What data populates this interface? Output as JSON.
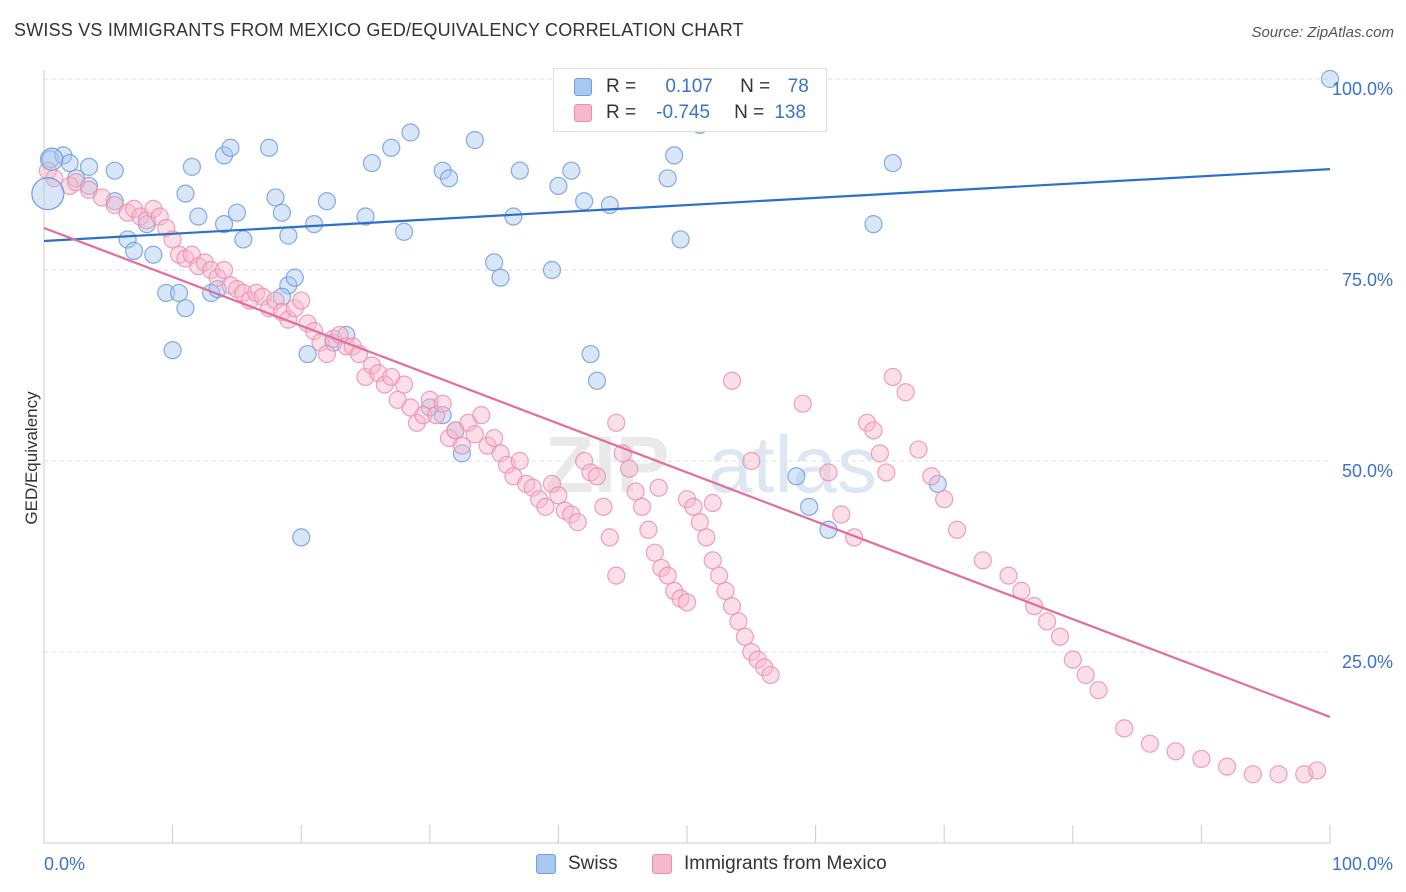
{
  "title": "SWISS VS IMMIGRANTS FROM MEXICO GED/EQUIVALENCY CORRELATION CHART",
  "source": "Source: ZipAtlas.com",
  "watermark": {
    "part1": "ZIP",
    "part2": "atlas"
  },
  "legend": {
    "series1": {
      "r_label": "R =",
      "r_value": "0.107",
      "n_label": "N =",
      "n_value": "78"
    },
    "series2": {
      "r_label": "R =",
      "r_value": "-0.745",
      "n_label": "N =",
      "n_value": "138"
    }
  },
  "colors": {
    "swiss_fill": "#a9c8f0",
    "swiss_stroke": "#6f9fdc",
    "swiss_line": "#2e6fc9",
    "mexico_fill": "#f6b8cc",
    "mexico_stroke": "#ec8fae",
    "mexico_line": "#e36d9b",
    "axis_label": "#3a73c9",
    "grid": "#dddddd"
  },
  "chart_data": {
    "type": "scatter",
    "title": "SWISS VS IMMIGRANTS FROM MEXICO GED/EQUIVALENCY CORRELATION CHART",
    "xlabel": "",
    "ylabel": "GED/Equivalency",
    "xlim": [
      0,
      100
    ],
    "ylim": [
      0,
      102
    ],
    "x_tick_labels": [
      "0.0%",
      "100.0%"
    ],
    "y_tick_labels": [
      "25.0%",
      "50.0%",
      "75.0%",
      "100.0%"
    ],
    "y_ticks": [
      25,
      50,
      75,
      100
    ],
    "grid": true,
    "legend_position": "top-center",
    "series": [
      {
        "name": "Swiss",
        "trend": [
          [
            0,
            78.8
          ],
          [
            100,
            88.2
          ]
        ],
        "points": [
          [
            0.5,
            89.5
          ],
          [
            1.5,
            90
          ],
          [
            2,
            89
          ],
          [
            3.5,
            88.5
          ],
          [
            5.5,
            88
          ],
          [
            2.5,
            87
          ],
          [
            3.5,
            86
          ],
          [
            5.5,
            84
          ],
          [
            8,
            81
          ],
          [
            6.5,
            79
          ],
          [
            7,
            77.5
          ],
          [
            8.5,
            77
          ],
          [
            11,
            85
          ],
          [
            11.5,
            88.5
          ],
          [
            12,
            82
          ],
          [
            13,
            72
          ],
          [
            11,
            70
          ],
          [
            9.5,
            72
          ],
          [
            10,
            64.5
          ],
          [
            10.5,
            72
          ],
          [
            13.5,
            72.5
          ],
          [
            14,
            81
          ],
          [
            15,
            82.5
          ],
          [
            15.5,
            79
          ],
          [
            14,
            90
          ],
          [
            14.5,
            91
          ],
          [
            17.5,
            91
          ],
          [
            18,
            84.5
          ],
          [
            18.5,
            82.5
          ],
          [
            19,
            79.5
          ],
          [
            19,
            73
          ],
          [
            18.5,
            71.5
          ],
          [
            19.5,
            74
          ],
          [
            21,
            81
          ],
          [
            22,
            84
          ],
          [
            20.5,
            64
          ],
          [
            22.5,
            65.5
          ],
          [
            23.5,
            66.5
          ],
          [
            25,
            82
          ],
          [
            25.5,
            89
          ],
          [
            27,
            91
          ],
          [
            28.5,
            93
          ],
          [
            28,
            80
          ],
          [
            30,
            57
          ],
          [
            31,
            56
          ],
          [
            32,
            54
          ],
          [
            32.5,
            51
          ],
          [
            31,
            88
          ],
          [
            31.5,
            87
          ],
          [
            33.5,
            92
          ],
          [
            35,
            76
          ],
          [
            35.5,
            74
          ],
          [
            36.5,
            82
          ],
          [
            37,
            88
          ],
          [
            39.5,
            75
          ],
          [
            40,
            86
          ],
          [
            41,
            88
          ],
          [
            42,
            84
          ],
          [
            42.5,
            64
          ],
          [
            43,
            60.5
          ],
          [
            44,
            83.5
          ],
          [
            45,
            100
          ],
          [
            46,
            100
          ],
          [
            48,
            100
          ],
          [
            48.5,
            87
          ],
          [
            49,
            90
          ],
          [
            49.5,
            79
          ],
          [
            51,
            94
          ],
          [
            55,
            100
          ],
          [
            57,
            100
          ],
          [
            58.5,
            48
          ],
          [
            59.5,
            44
          ],
          [
            61,
            41
          ],
          [
            64.5,
            81
          ],
          [
            66,
            89
          ],
          [
            69.5,
            47
          ],
          [
            20,
            40
          ],
          [
            100,
            100
          ]
        ]
      },
      {
        "name": "Immigrants from Mexico",
        "trend": [
          [
            0,
            80.5
          ],
          [
            100,
            16.5
          ]
        ],
        "points": [
          [
            0.3,
            88
          ],
          [
            0.8,
            87
          ],
          [
            2,
            86
          ],
          [
            2.5,
            86.5
          ],
          [
            3.5,
            85.5
          ],
          [
            4.5,
            84.5
          ],
          [
            5.5,
            83.5
          ],
          [
            6.5,
            82.5
          ],
          [
            7,
            83
          ],
          [
            7.5,
            82
          ],
          [
            8,
            81.5
          ],
          [
            8.5,
            83
          ],
          [
            9,
            82
          ],
          [
            9.5,
            80.5
          ],
          [
            10,
            79
          ],
          [
            10.5,
            77
          ],
          [
            11,
            76.5
          ],
          [
            11.5,
            77
          ],
          [
            12,
            75.5
          ],
          [
            12.5,
            76
          ],
          [
            13,
            75
          ],
          [
            13.5,
            74
          ],
          [
            14,
            75
          ],
          [
            14.5,
            73
          ],
          [
            15,
            72.5
          ],
          [
            15.5,
            72
          ],
          [
            16,
            71
          ],
          [
            16.5,
            72
          ],
          [
            17,
            71.5
          ],
          [
            17.5,
            70
          ],
          [
            18,
            71
          ],
          [
            18.5,
            69.5
          ],
          [
            19,
            68.5
          ],
          [
            19.5,
            70
          ],
          [
            20,
            71
          ],
          [
            20.5,
            68
          ],
          [
            21,
            67
          ],
          [
            21.5,
            65.5
          ],
          [
            22,
            64
          ],
          [
            22.5,
            66
          ],
          [
            23,
            66.5
          ],
          [
            23.5,
            65
          ],
          [
            24,
            65
          ],
          [
            24.5,
            64
          ],
          [
            25,
            61
          ],
          [
            25.5,
            62.5
          ],
          [
            26,
            61.5
          ],
          [
            26.5,
            60
          ],
          [
            27,
            61
          ],
          [
            27.5,
            58
          ],
          [
            28,
            60
          ],
          [
            28.5,
            57
          ],
          [
            29,
            55
          ],
          [
            29.5,
            56
          ],
          [
            30,
            58
          ],
          [
            30.5,
            56
          ],
          [
            31,
            57.5
          ],
          [
            31.5,
            53
          ],
          [
            32,
            54
          ],
          [
            32.5,
            52
          ],
          [
            33,
            55
          ],
          [
            33.5,
            53.5
          ],
          [
            34,
            56
          ],
          [
            34.5,
            52
          ],
          [
            35,
            53
          ],
          [
            35.5,
            51
          ],
          [
            36,
            49.5
          ],
          [
            36.5,
            48
          ],
          [
            37,
            50
          ],
          [
            37.5,
            47
          ],
          [
            38,
            46.5
          ],
          [
            38.5,
            45
          ],
          [
            39,
            44
          ],
          [
            39.5,
            47
          ],
          [
            40,
            45.5
          ],
          [
            40.5,
            43.5
          ],
          [
            41,
            43
          ],
          [
            41.5,
            42
          ],
          [
            42,
            50
          ],
          [
            42.5,
            48.5
          ],
          [
            43,
            48
          ],
          [
            43.5,
            44
          ],
          [
            44,
            40
          ],
          [
            44.5,
            55
          ],
          [
            45,
            51
          ],
          [
            45.5,
            49
          ],
          [
            46,
            46
          ],
          [
            46.5,
            44
          ],
          [
            47,
            41
          ],
          [
            47.5,
            38
          ],
          [
            48,
            36
          ],
          [
            48.5,
            35
          ],
          [
            49,
            33
          ],
          [
            49.5,
            32
          ],
          [
            50,
            45
          ],
          [
            50.5,
            44
          ],
          [
            51,
            42
          ],
          [
            51.5,
            40
          ],
          [
            52,
            37
          ],
          [
            52.5,
            35
          ],
          [
            53,
            33
          ],
          [
            53.5,
            31
          ],
          [
            54,
            29
          ],
          [
            54.5,
            27
          ],
          [
            55,
            25
          ],
          [
            55.5,
            24
          ],
          [
            56,
            23
          ],
          [
            56.5,
            22
          ],
          [
            44.5,
            35
          ],
          [
            50,
            31.5
          ],
          [
            47.8,
            46.5
          ],
          [
            52,
            44.5
          ],
          [
            53.5,
            60.5
          ],
          [
            55,
            50
          ],
          [
            59,
            57.5
          ],
          [
            61,
            48.5
          ],
          [
            62,
            43
          ],
          [
            63,
            40
          ],
          [
            64,
            55
          ],
          [
            64.5,
            54
          ],
          [
            65,
            51
          ],
          [
            65.5,
            48.5
          ],
          [
            66,
            61
          ],
          [
            67,
            59
          ],
          [
            68,
            51.5
          ],
          [
            69,
            48
          ],
          [
            70,
            45
          ],
          [
            71,
            41
          ],
          [
            73,
            37
          ],
          [
            75,
            35
          ],
          [
            76,
            33
          ],
          [
            77,
            31
          ],
          [
            78,
            29
          ],
          [
            79,
            27
          ],
          [
            80,
            24
          ],
          [
            81,
            22
          ],
          [
            82,
            20
          ],
          [
            84,
            15
          ],
          [
            86,
            13
          ],
          [
            88,
            12
          ],
          [
            90,
            11
          ],
          [
            92,
            10
          ],
          [
            94,
            9
          ],
          [
            96,
            9
          ],
          [
            98,
            9
          ],
          [
            99,
            9.5
          ]
        ]
      }
    ]
  },
  "bottom_legend": [
    {
      "label": "Swiss"
    },
    {
      "label": "Immigrants from Mexico"
    }
  ]
}
